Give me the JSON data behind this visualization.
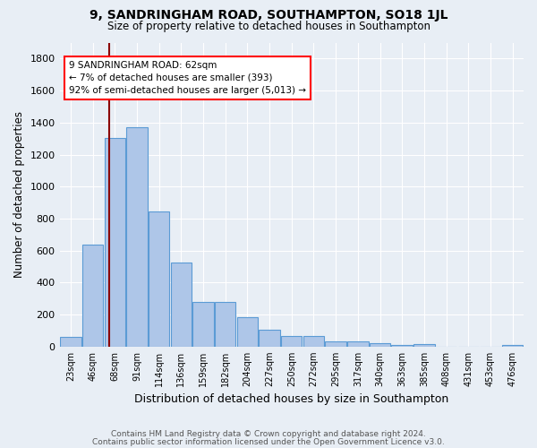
{
  "title": "9, SANDRINGHAM ROAD, SOUTHAMPTON, SO18 1JL",
  "subtitle": "Size of property relative to detached houses in Southampton",
  "xlabel": "Distribution of detached houses by size in Southampton",
  "ylabel": "Number of detached properties",
  "footer_line1": "Contains HM Land Registry data © Crown copyright and database right 2024.",
  "footer_line2": "Contains public sector information licensed under the Open Government Licence v3.0.",
  "bin_labels": [
    "23sqm",
    "46sqm",
    "68sqm",
    "91sqm",
    "114sqm",
    "136sqm",
    "159sqm",
    "182sqm",
    "204sqm",
    "227sqm",
    "250sqm",
    "272sqm",
    "295sqm",
    "317sqm",
    "340sqm",
    "363sqm",
    "385sqm",
    "408sqm",
    "431sqm",
    "453sqm",
    "476sqm"
  ],
  "bar_values": [
    60,
    640,
    1305,
    1370,
    845,
    525,
    278,
    278,
    185,
    105,
    65,
    65,
    35,
    35,
    20,
    10,
    15,
    0,
    0,
    0,
    10
  ],
  "bar_color": "#aec6e8",
  "bar_edge_color": "#5b9bd5",
  "grid_color": "#ffffff",
  "bg_color": "#e8eef5",
  "annotation_text": "9 SANDRINGHAM ROAD: 62sqm\n← 7% of detached houses are smaller (393)\n92% of semi-detached houses are larger (5,013) →",
  "vline_color": "#8b0000",
  "ylim": [
    0,
    1900
  ],
  "yticks": [
    0,
    200,
    400,
    600,
    800,
    1000,
    1200,
    1400,
    1600,
    1800
  ]
}
